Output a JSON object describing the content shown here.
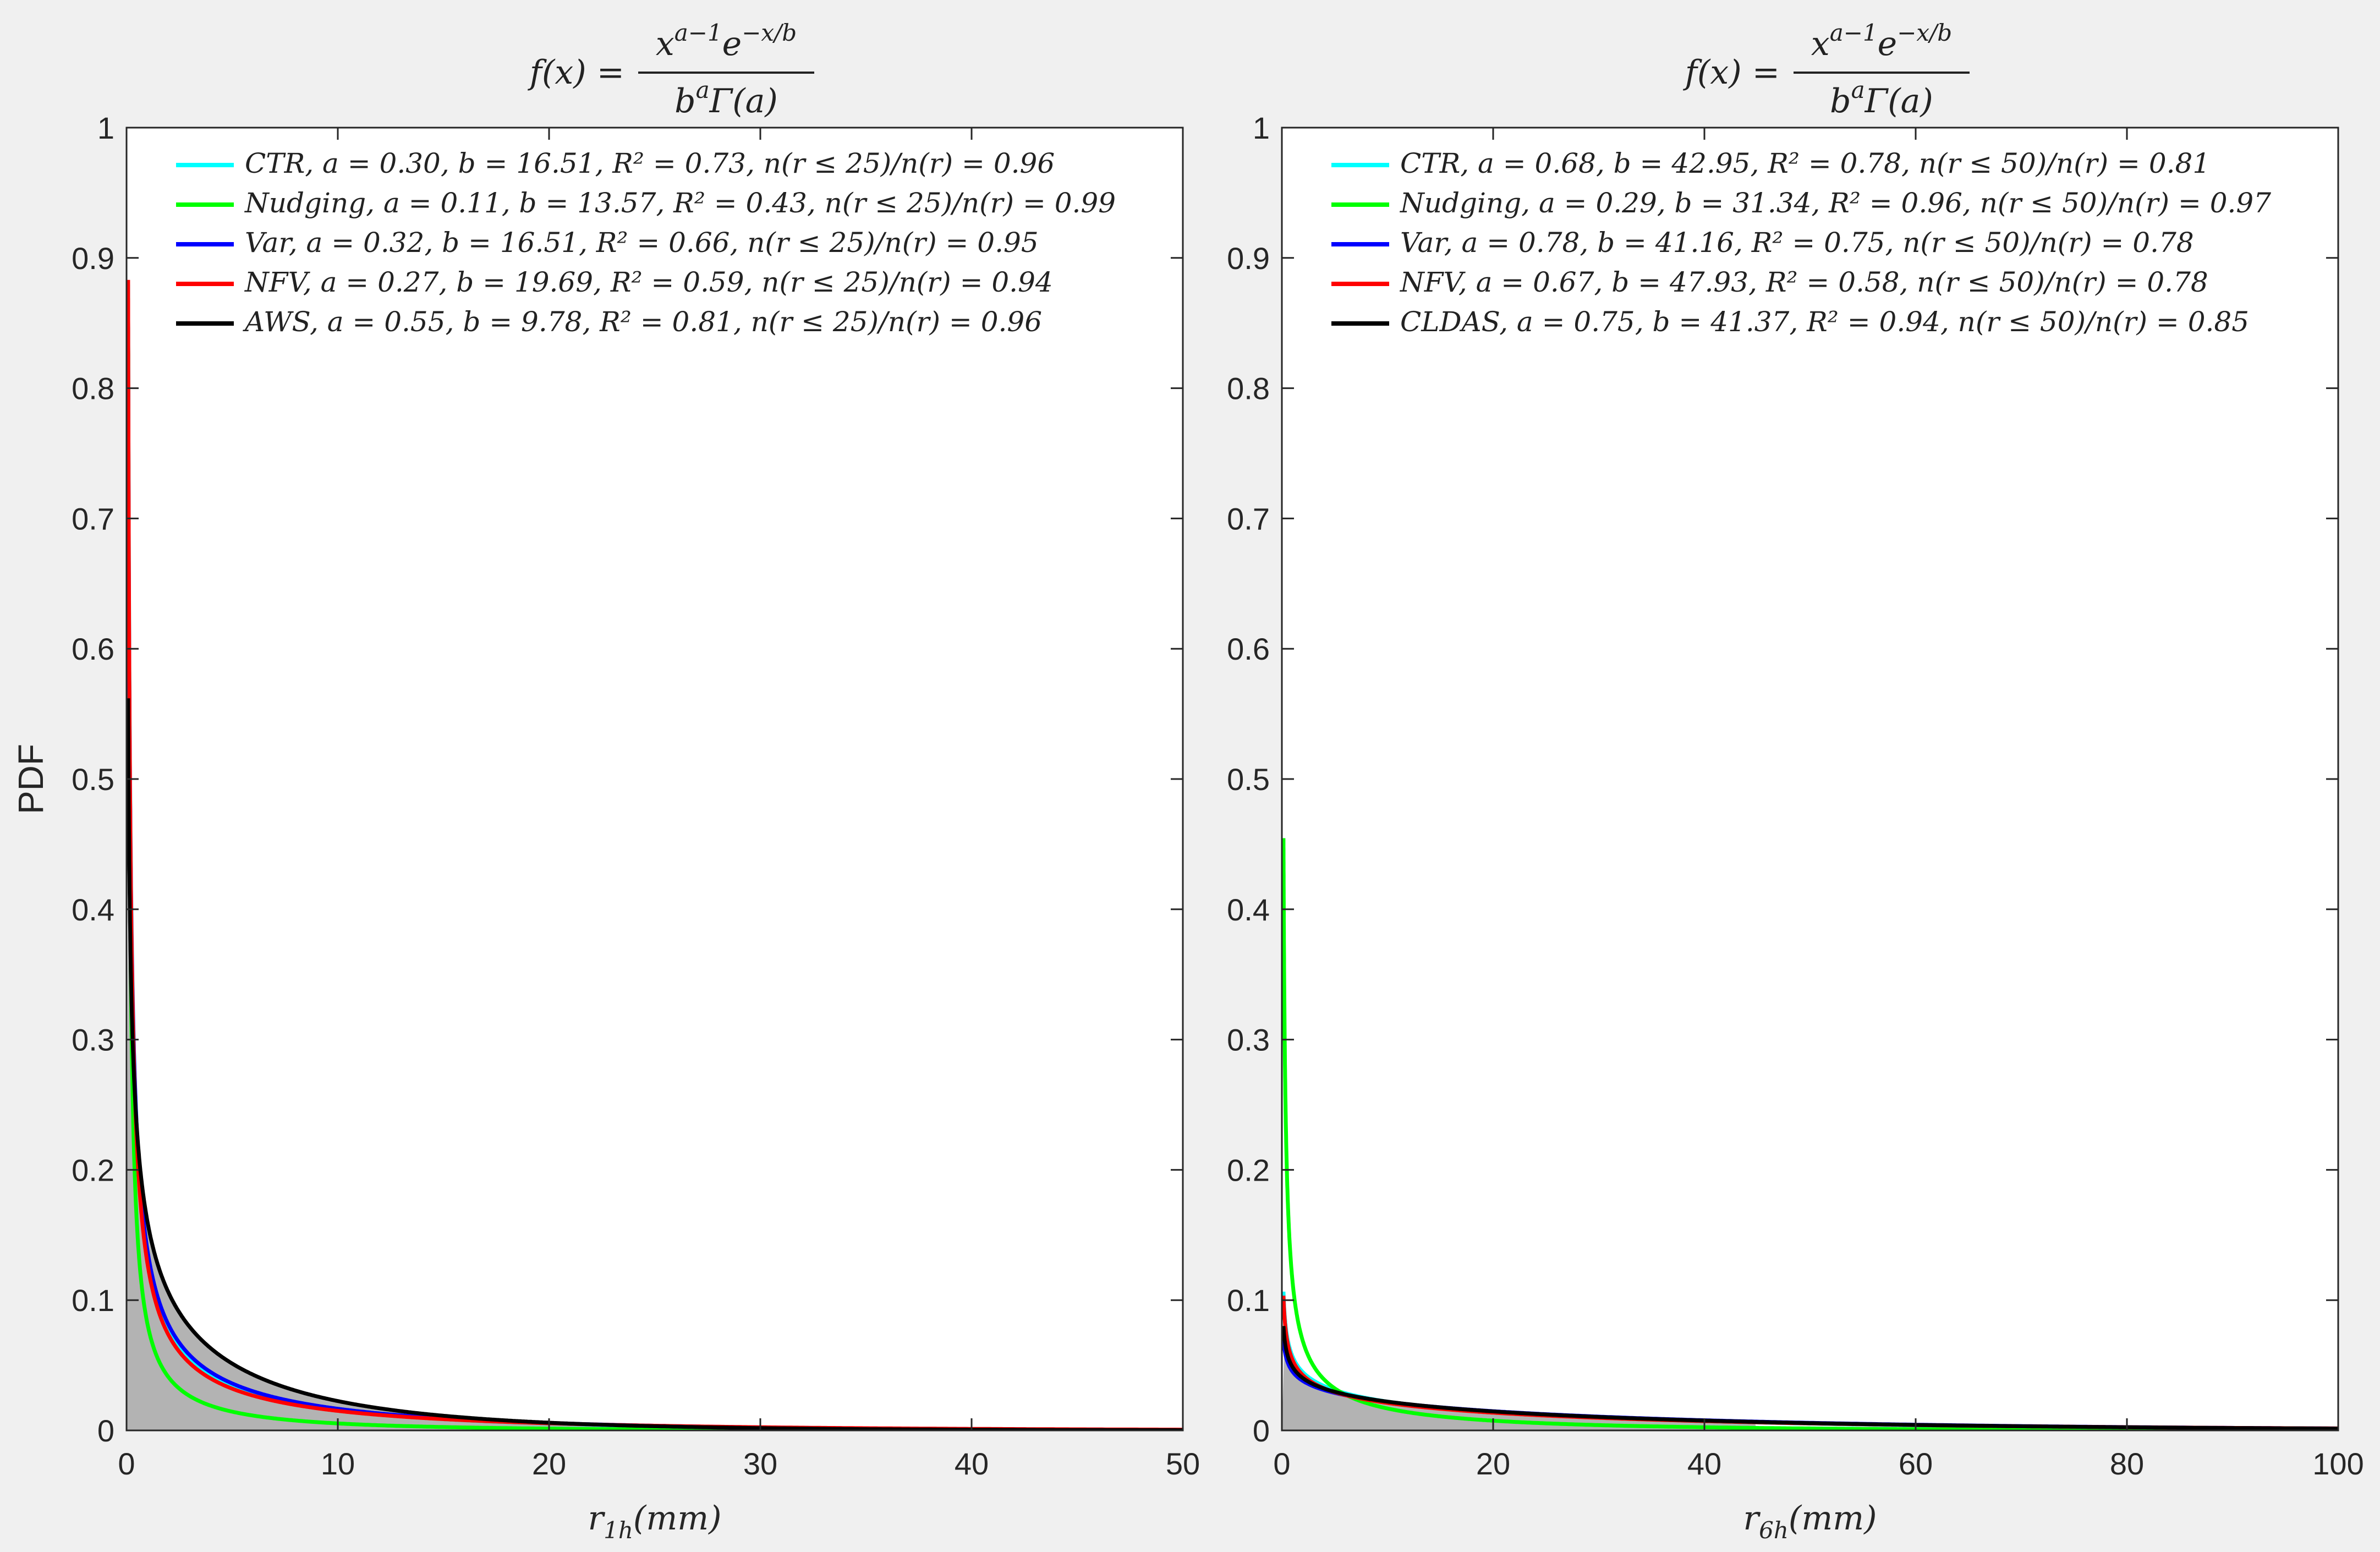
{
  "chart_data": [
    {
      "type": "line",
      "title": "f(x) = x^(a−1) e^(−x/b) / (b^a Γ(a))",
      "title_parts": {
        "lhs": "f(x) =",
        "num": "x",
        "num_sup": "a−1",
        "num_e": "e",
        "num_e_sup": "−x/b",
        "den": "b",
        "den_sup": "a",
        "den_rest": "Γ(a)"
      },
      "xlabel": "r",
      "xlabel_sub": "1h",
      "xlabel_unit": "(mm)",
      "ylabel": "PDF",
      "xlim": [
        0,
        50
      ],
      "ylim": [
        0,
        1
      ],
      "xticks": [
        "0",
        "10",
        "20",
        "30",
        "40",
        "50"
      ],
      "yticks": [
        "0",
        "0.1",
        "0.2",
        "0.3",
        "0.4",
        "0.5",
        "0.6",
        "0.7",
        "0.8",
        "0.9",
        "1"
      ],
      "legend_position": "top",
      "histogram": {
        "color": "#b3b3b3",
        "bin_width": 0.2,
        "x_max": 30,
        "shape_a": 0.55,
        "shape_b": 9.78
      },
      "series": [
        {
          "name": "CTR",
          "a": 0.3,
          "b": 16.51,
          "color": "#00ffff",
          "legend": "CTR, a = 0.30, b = 16.51, R² = 0.73, n(r ≤ 25)/n(r) = 0.96"
        },
        {
          "name": "Nudging",
          "a": 0.11,
          "b": 13.57,
          "color": "#00ff00",
          "legend": "Nudging, a = 0.11, b = 13.57, R² = 0.43, n(r ≤ 25)/n(r) = 0.99"
        },
        {
          "name": "Var",
          "a": 0.32,
          "b": 16.51,
          "color": "#0000ff",
          "legend": "Var, a = 0.32, b = 16.51, R² = 0.66, n(r ≤ 25)/n(r) = 0.95"
        },
        {
          "name": "NFV",
          "a": 0.27,
          "b": 19.69,
          "color": "#ff0000",
          "legend": "NFV, a = 0.27, b = 19.69, R² = 0.59, n(r ≤ 25)/n(r) = 0.94"
        },
        {
          "name": "AWS",
          "a": 0.55,
          "b": 9.78,
          "color": "#000000",
          "legend": "AWS, a = 0.55, b = 9.78, R² = 0.81, n(r ≤ 25)/n(r) = 0.96"
        }
      ]
    },
    {
      "type": "line",
      "title": "f(x) = x^(a−1) e^(−x/b) / (b^a Γ(a))",
      "title_parts": {
        "lhs": "f(x) =",
        "num": "x",
        "num_sup": "a−1",
        "num_e": "e",
        "num_e_sup": "−x/b",
        "den": "b",
        "den_sup": "a",
        "den_rest": "Γ(a)"
      },
      "xlabel": "r",
      "xlabel_sub": "6h",
      "xlabel_unit": "(mm)",
      "ylabel": "",
      "xlim": [
        0,
        100
      ],
      "ylim": [
        0,
        1
      ],
      "xticks": [
        "0",
        "20",
        "40",
        "60",
        "80",
        "100"
      ],
      "yticks": [
        "0",
        "0.1",
        "0.2",
        "0.3",
        "0.4",
        "0.5",
        "0.6",
        "0.7",
        "0.8",
        "0.9",
        "1"
      ],
      "legend_position": "top",
      "histogram": {
        "color": "#b3b3b3",
        "bin_width": 0.5,
        "x_max": 45,
        "shape_a": 0.75,
        "shape_b": 41.37
      },
      "series": [
        {
          "name": "CTR",
          "a": 0.68,
          "b": 42.95,
          "color": "#00ffff",
          "legend": "CTR, a = 0.68, b = 42.95, R² = 0.78, n(r ≤ 50)/n(r) = 0.81"
        },
        {
          "name": "Nudging",
          "a": 0.29,
          "b": 31.34,
          "color": "#00ff00",
          "legend": "Nudging, a = 0.29, b = 31.34, R² = 0.96, n(r ≤ 50)/n(r) = 0.97"
        },
        {
          "name": "Var",
          "a": 0.78,
          "b": 41.16,
          "color": "#0000ff",
          "legend": "Var, a = 0.78, b = 41.16, R² = 0.75, n(r ≤ 50)/n(r) = 0.78"
        },
        {
          "name": "NFV",
          "a": 0.67,
          "b": 47.93,
          "color": "#ff0000",
          "legend": "NFV, a = 0.67, b = 47.93, R² = 0.58, n(r ≤ 50)/n(r) = 0.78"
        },
        {
          "name": "CLDAS",
          "a": 0.75,
          "b": 41.37,
          "color": "#000000",
          "legend": "CLDAS, a = 0.75, b = 41.37, R² = 0.94, n(r ≤ 50)/n(r) = 0.85"
        }
      ]
    }
  ]
}
